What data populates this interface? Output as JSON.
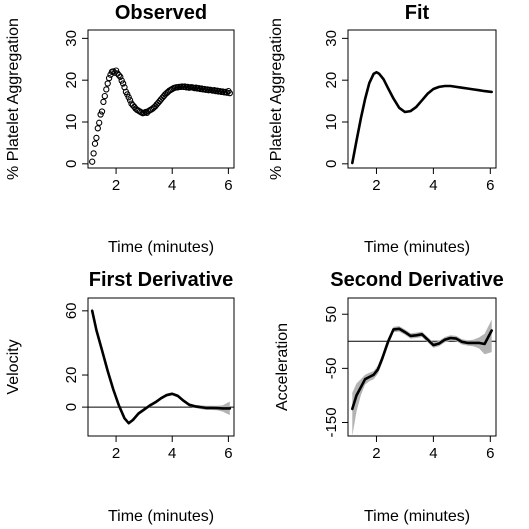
{
  "chart_data": [
    {
      "type": "scatter",
      "title": "Observed",
      "xlabel": "Time (minutes)",
      "ylabel": "% Platelet Aggregation",
      "xlim": [
        1.0,
        6.2
      ],
      "ylim": [
        -1,
        32
      ],
      "xticks": [
        2,
        4,
        6
      ],
      "yticks": [
        0,
        10,
        20,
        30
      ],
      "zero_line": false,
      "series": [
        {
          "style": "points",
          "x": [
            1.15,
            1.2,
            1.25,
            1.3,
            1.35,
            1.4,
            1.45,
            1.5,
            1.55,
            1.6,
            1.65,
            1.7,
            1.75,
            1.8,
            1.85,
            1.9,
            1.95,
            2.0,
            2.05,
            2.1,
            2.15,
            2.2,
            2.25,
            2.3,
            2.35,
            2.4,
            2.45,
            2.5,
            2.55,
            2.6,
            2.65,
            2.7,
            2.75,
            2.8,
            2.85,
            2.9,
            2.95,
            3.0,
            3.05,
            3.1,
            3.15,
            3.2,
            3.25,
            3.3,
            3.35,
            3.4,
            3.45,
            3.5,
            3.55,
            3.6,
            3.65,
            3.7,
            3.75,
            3.8,
            3.85,
            3.9,
            3.95,
            4.0,
            4.05,
            4.1,
            4.15,
            4.2,
            4.25,
            4.3,
            4.35,
            4.4,
            4.45,
            4.5,
            4.55,
            4.6,
            4.65,
            4.7,
            4.75,
            4.8,
            4.85,
            4.9,
            4.95,
            5.0,
            5.05,
            5.1,
            5.15,
            5.2,
            5.25,
            5.3,
            5.35,
            5.4,
            5.45,
            5.5,
            5.55,
            5.6,
            5.65,
            5.7,
            5.75,
            5.8,
            5.85,
            5.9,
            5.95,
            6.0,
            6.05
          ],
          "y": [
            0.5,
            2.5,
            4.8,
            6.2,
            8.5,
            9.8,
            11.8,
            12.5,
            14.8,
            16.2,
            17.8,
            19.2,
            20.5,
            21.3,
            22.0,
            22.1,
            21.8,
            22.3,
            21.6,
            21.2,
            20.8,
            19.9,
            19.2,
            18.3,
            17.2,
            16.6,
            15.9,
            15.2,
            14.4,
            14.0,
            13.6,
            13.2,
            12.9,
            12.7,
            12.5,
            12.3,
            12.1,
            12.2,
            12.4,
            12.2,
            12.6,
            12.8,
            13.0,
            13.2,
            13.5,
            13.8,
            14.2,
            14.6,
            15.0,
            15.4,
            15.8,
            16.2,
            16.6,
            16.9,
            17.2,
            17.5,
            17.7,
            17.9,
            18.1,
            18.2,
            18.3,
            18.3,
            18.4,
            18.4,
            18.5,
            18.4,
            18.5,
            18.3,
            18.4,
            18.2,
            18.3,
            18.3,
            18.2,
            18.1,
            18.2,
            18.0,
            18.1,
            17.9,
            18.0,
            17.8,
            17.9,
            17.7,
            17.8,
            17.6,
            17.7,
            17.6,
            17.5,
            17.6,
            17.4,
            17.5,
            17.3,
            17.4,
            17.2,
            17.3,
            17.1,
            17.2,
            17.0,
            17.4,
            16.9
          ]
        }
      ]
    },
    {
      "type": "line",
      "title": "Fit",
      "xlabel": "Time (minutes)",
      "ylabel": "% Platelet Aggregation",
      "xlim": [
        1.0,
        6.2
      ],
      "ylim": [
        -1,
        32
      ],
      "xticks": [
        2,
        4,
        6
      ],
      "yticks": [
        0,
        10,
        20,
        30
      ],
      "zero_line": false,
      "series": [
        {
          "style": "line",
          "x": [
            1.15,
            1.3,
            1.45,
            1.6,
            1.75,
            1.9,
            2.0,
            2.1,
            2.25,
            2.4,
            2.6,
            2.8,
            3.0,
            3.2,
            3.4,
            3.6,
            3.8,
            4.0,
            4.2,
            4.4,
            4.6,
            4.8,
            5.0,
            5.2,
            5.4,
            5.6,
            5.8,
            6.05
          ],
          "y": [
            0.2,
            5.5,
            10.8,
            15.5,
            19.3,
            21.5,
            21.9,
            21.5,
            20.2,
            18.2,
            15.6,
            13.4,
            12.4,
            12.6,
            13.6,
            15.2,
            16.8,
            17.9,
            18.4,
            18.6,
            18.6,
            18.4,
            18.2,
            18.0,
            17.8,
            17.6,
            17.4,
            17.2
          ]
        }
      ]
    },
    {
      "type": "line",
      "title": "First Derivative",
      "xlabel": "Time (minutes)",
      "ylabel": "Velocity",
      "xlim": [
        1.0,
        6.2
      ],
      "ylim": [
        -18,
        68
      ],
      "xticks": [
        2,
        4,
        6
      ],
      "yticks": [
        0,
        20,
        60
      ],
      "zero_line": true,
      "series": [
        {
          "style": "band",
          "x": [
            1.15,
            1.3,
            1.5,
            1.7,
            1.9,
            2.1,
            2.3,
            2.45,
            2.6,
            2.8,
            3.0,
            3.2,
            3.4,
            3.6,
            3.8,
            4.0,
            4.2,
            4.4,
            4.6,
            4.8,
            5.0,
            5.2,
            5.4,
            5.6,
            5.8,
            6.05
          ],
          "upper": [
            62,
            50,
            37,
            24,
            12,
            2,
            -6,
            -9,
            -7,
            -3,
            -0.6,
            2,
            4,
            6.5,
            8.5,
            9.2,
            8,
            5,
            2.5,
            1.5,
            1.2,
            0.8,
            0.8,
            0.8,
            1.2,
            3.5
          ],
          "lower": [
            58,
            46,
            34,
            21,
            10,
            0,
            -8,
            -11,
            -9,
            -5,
            -2.4,
            0,
            2,
            4.5,
            6.5,
            7.4,
            6,
            3,
            0.5,
            -0.5,
            -1.2,
            -1.8,
            -1.8,
            -2,
            -2.8,
            -5
          ]
        },
        {
          "style": "line",
          "x": [
            1.15,
            1.3,
            1.5,
            1.7,
            1.9,
            2.1,
            2.3,
            2.45,
            2.6,
            2.8,
            3.0,
            3.2,
            3.4,
            3.6,
            3.8,
            4.0,
            4.2,
            4.4,
            4.6,
            4.8,
            5.0,
            5.2,
            5.4,
            5.6,
            5.8,
            6.05
          ],
          "y": [
            60,
            48,
            35.5,
            22.5,
            11,
            1,
            -7,
            -10,
            -8,
            -4,
            -1.5,
            1,
            3,
            5.5,
            7.5,
            8.3,
            7,
            4,
            1.5,
            0.5,
            0,
            -0.5,
            -0.5,
            -0.6,
            -0.8,
            -0.8
          ]
        }
      ]
    },
    {
      "type": "line",
      "title": "Second Derivative",
      "xlabel": "Time (minutes)",
      "ylabel": "Acceleration",
      "xlim": [
        1.0,
        6.2
      ],
      "ylim": [
        -175,
        80
      ],
      "xticks": [
        2,
        4,
        6
      ],
      "yticks": [
        -150,
        -50,
        50
      ],
      "zero_line": true,
      "series": [
        {
          "style": "band",
          "x": [
            1.15,
            1.3,
            1.45,
            1.6,
            1.75,
            1.9,
            2.05,
            2.2,
            2.4,
            2.6,
            2.8,
            3.0,
            3.2,
            3.4,
            3.6,
            3.8,
            4.0,
            4.2,
            4.4,
            4.6,
            4.8,
            5.0,
            5.2,
            5.4,
            5.6,
            5.8,
            6.05
          ],
          "upper": [
            -95,
            -78,
            -70,
            -62,
            -58,
            -55,
            -45,
            -25,
            5,
            27,
            28,
            22,
            15,
            16,
            18,
            8,
            -2,
            1,
            8,
            11,
            10,
            4,
            2,
            3,
            7,
            14,
            40
          ],
          "lower": [
            -175,
            -130,
            -100,
            -80,
            -74,
            -70,
            -60,
            -40,
            -10,
            17,
            18,
            12,
            5,
            6,
            8,
            -2,
            -12,
            -9,
            -2,
            1,
            0,
            -6,
            -8,
            -9,
            -13,
            -24,
            -20
          ]
        },
        {
          "style": "line",
          "x": [
            1.15,
            1.3,
            1.45,
            1.6,
            1.75,
            1.9,
            2.05,
            2.2,
            2.4,
            2.6,
            2.8,
            3.0,
            3.2,
            3.4,
            3.6,
            3.8,
            4.0,
            4.2,
            4.4,
            4.6,
            4.8,
            5.0,
            5.2,
            5.4,
            5.6,
            5.8,
            6.05
          ],
          "y": [
            -125,
            -100,
            -85,
            -70,
            -66,
            -62,
            -52,
            -32,
            -2,
            22,
            23,
            17,
            10,
            11,
            13,
            3,
            -7,
            -4,
            3,
            6,
            5,
            -1,
            -3,
            -3,
            -3,
            -5,
            20
          ]
        }
      ]
    }
  ]
}
